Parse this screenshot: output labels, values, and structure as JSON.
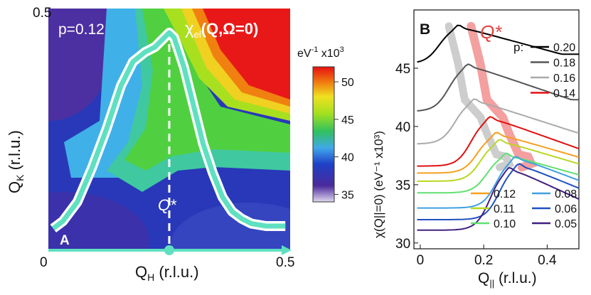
{
  "chart_data": [
    {
      "type": "heatmap",
      "panel_label": "A",
      "title_chi": "χ",
      "title_sub": "el",
      "title_args": "(Q,Ω=0)",
      "annotation_doping": "p=0.12",
      "annotation_qstar": "Q*",
      "xlabel_main": "Q",
      "xlabel_sub": "H",
      "xlabel_unit": " (r.l.u.)",
      "ylabel_main": "Q",
      "ylabel_sub": "K",
      "ylabel_unit": " (r.l.u.)",
      "xlim": [
        0,
        0.5
      ],
      "ylim": [
        0,
        0.5
      ],
      "x_ticklabels": [
        "0",
        "0.5"
      ],
      "y_ticklabels": [
        "0.5"
      ],
      "qstar_x": 0.25,
      "path_points": [
        [
          0.01,
          0.045
        ],
        [
          0.03,
          0.06
        ],
        [
          0.06,
          0.1
        ],
        [
          0.09,
          0.17
        ],
        [
          0.12,
          0.25
        ],
        [
          0.15,
          0.34
        ],
        [
          0.175,
          0.39
        ],
        [
          0.2,
          0.41
        ],
        [
          0.22,
          0.42
        ],
        [
          0.24,
          0.44
        ],
        [
          0.25,
          0.45
        ],
        [
          0.26,
          0.44
        ],
        [
          0.28,
          0.38
        ],
        [
          0.3,
          0.3
        ],
        [
          0.32,
          0.22
        ],
        [
          0.34,
          0.16
        ],
        [
          0.36,
          0.11
        ],
        [
          0.38,
          0.08
        ],
        [
          0.4,
          0.065
        ],
        [
          0.42,
          0.055
        ],
        [
          0.45,
          0.05
        ],
        [
          0.49,
          0.05
        ]
      ],
      "colorbar": {
        "label_unit": "eV",
        "label_exp": "-1",
        "label_scale": " x10",
        "label_scale_exp": "3",
        "range": [
          34,
          52
        ],
        "ticks": [
          "35",
          "40",
          "45",
          "50"
        ]
      }
    },
    {
      "type": "line",
      "panel_label": "B",
      "annotation_qstar": "Q*",
      "legend_title": "p:",
      "xlabel_main": "Q",
      "xlabel_sub": "||",
      "xlabel_unit": " (r.l.u.)",
      "ylabel": "χ(Q||=0) (eV⁻¹ x10³)",
      "xlim": [
        -0.02,
        0.5
      ],
      "ylim": [
        29.5,
        50
      ],
      "x_ticks": [
        0,
        0.2,
        0.4
      ],
      "x_ticklabels": [
        "0",
        "0.2",
        "0.4"
      ],
      "y_ticks": [
        30,
        35,
        40,
        45
      ],
      "y_ticklabels": [
        "30",
        "35",
        "40",
        "45"
      ],
      "series": [
        {
          "name": "0.20",
          "color": "#000000",
          "offset": 45.4,
          "peak_x": 0.12,
          "peak_h": 3.2
        },
        {
          "name": "0.18",
          "color": "#555555",
          "offset": 41.3,
          "peak_x": 0.15,
          "peak_h": 4.0
        },
        {
          "name": "0.16",
          "color": "#aaaaaa",
          "offset": 38.5,
          "peak_x": 0.17,
          "peak_h": 3.8
        },
        {
          "name": "0.14",
          "color": "#e01010",
          "offset": 36.6,
          "peak_x": 0.22,
          "peak_h": 4.2
        },
        {
          "name": "0.12",
          "color": "#f5a020",
          "offset": 36.0,
          "peak_x": 0.24,
          "peak_h": 3.4
        },
        {
          "name": "0.11",
          "color": "#b8d820",
          "offset": 35.3,
          "peak_x": 0.25,
          "peak_h": 3.5
        },
        {
          "name": "0.10",
          "color": "#60e070",
          "offset": 34.3,
          "peak_x": 0.27,
          "peak_h": 3.3
        },
        {
          "name": "0.08",
          "color": "#40a0e0",
          "offset": 33.0,
          "peak_x": 0.3,
          "peak_h": 4.4
        },
        {
          "name": "0.06",
          "color": "#2050c0",
          "offset": 32.0,
          "peak_x": 0.31,
          "peak_h": 4.8
        },
        {
          "name": "0.05",
          "color": "#402080",
          "offset": 31.1,
          "peak_x": 0.28,
          "peak_h": 5.4
        }
      ],
      "colors": {
        "qstar_band": "#f08080",
        "gray_band": "#c8c8c8",
        "qstar_text": "#e84040"
      }
    }
  ]
}
